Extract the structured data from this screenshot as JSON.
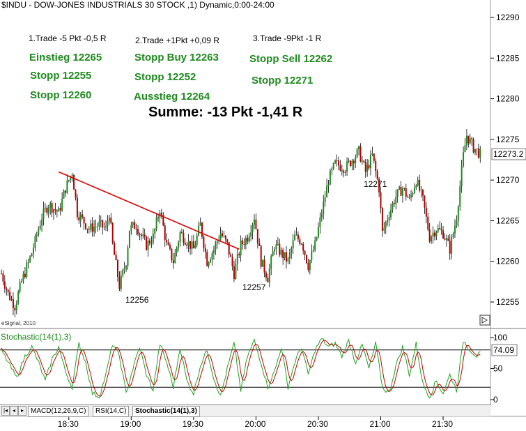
{
  "header": {
    "title": "$INDU - DOW-JONES INDUSTRIALS 30 STOCK ,1) Dynamic,0:00-24:00"
  },
  "trades": {
    "t1": {
      "title": "1.Trade -5 Pkt -0,5 R",
      "l1": "Einstieg 12265",
      "l2": "Stopp 12255",
      "l3": "Stopp 12260"
    },
    "t2": {
      "title": "2.Trade +1Pkt +0,09 R",
      "l1": "Stopp Buy 12263",
      "l2": "Stopp 12252",
      "l3": "Ausstieg 12264"
    },
    "t3": {
      "title": "3.Trade -9Pkt -1 R",
      "l1": "Stopp Sell 12262",
      "l2": "Stopp 12271"
    }
  },
  "summary": "Summe: -13 Pkt -1,41 R",
  "annotations": {
    "a1": "12256",
    "a2": "12257",
    "a3": "12271"
  },
  "watermark": "eSignal, 2010",
  "indicator": {
    "label": "Stochastic(14(1),3)",
    "value_label": "74.09",
    "value": 74.09
  },
  "tabs": [
    "MACD(12,26,9,C)",
    "RSI(14,C)",
    "Stochastic(14(1),3)"
  ],
  "colors": {
    "up": "#1f8a1f",
    "down": "#b00000",
    "trendline": "#e00000",
    "k_line": "#20a020",
    "d_line": "#c00000",
    "text_green": "#1f8a1f"
  },
  "chart_data": {
    "type": "candlestick",
    "title": "$INDU - DOW-JONES INDUSTRIALS 30 STOCK ,1) Dynamic,0:00-24:00",
    "ylim": [
      12253,
      12292
    ],
    "yticks": [
      "12290",
      "12285",
      "12280",
      "12275",
      "12270",
      "12265",
      "12260",
      "12255"
    ],
    "ytick_values": [
      12290,
      12285,
      12280,
      12275,
      12270,
      12265,
      12260,
      12255
    ],
    "last_price_label": "12273.2",
    "last_price": 12273.2,
    "xticks": [
      "18:30",
      "19:00",
      "19:30",
      "20:00",
      "20:30",
      "21:00",
      "21:30"
    ],
    "price_anchors": [
      [
        0,
        12258.5
      ],
      [
        4,
        12256
      ],
      [
        8,
        12254.5
      ],
      [
        12,
        12257.5
      ],
      [
        18,
        12261
      ],
      [
        24,
        12265.5
      ],
      [
        28,
        12267
      ],
      [
        34,
        12266
      ],
      [
        38,
        12269
      ],
      [
        42,
        12271
      ],
      [
        45,
        12266
      ],
      [
        52,
        12264
      ],
      [
        58,
        12264.5
      ],
      [
        62,
        12264
      ],
      [
        64,
        12266
      ],
      [
        66,
        12262
      ],
      [
        70,
        12257
      ],
      [
        74,
        12260
      ],
      [
        76,
        12264
      ],
      [
        80,
        12264.5
      ],
      [
        82,
        12263.5
      ],
      [
        86,
        12262
      ],
      [
        90,
        12263
      ],
      [
        94,
        12266.5
      ],
      [
        98,
        12262
      ],
      [
        102,
        12260
      ],
      [
        106,
        12263.5
      ],
      [
        110,
        12262.5
      ],
      [
        114,
        12261.5
      ],
      [
        118,
        12264.5
      ],
      [
        122,
        12260
      ],
      [
        126,
        12261.5
      ],
      [
        130,
        12263.5
      ],
      [
        134,
        12262
      ],
      [
        138,
        12258.5
      ],
      [
        142,
        12262
      ],
      [
        146,
        12263
      ],
      [
        150,
        12265.5
      ],
      [
        154,
        12260
      ],
      [
        158,
        12258
      ],
      [
        162,
        12262
      ],
      [
        166,
        12261
      ],
      [
        170,
        12260
      ],
      [
        174,
        12263
      ],
      [
        178,
        12262.5
      ],
      [
        182,
        12259.5
      ],
      [
        186,
        12262
      ],
      [
        190,
        12266
      ],
      [
        194,
        12270
      ],
      [
        198,
        12272
      ],
      [
        204,
        12271.5
      ],
      [
        208,
        12272.5
      ],
      [
        212,
        12273.5
      ],
      [
        216,
        12271
      ],
      [
        220,
        12273
      ],
      [
        224,
        12269
      ],
      [
        226,
        12263.5
      ],
      [
        230,
        12266
      ],
      [
        234,
        12268
      ],
      [
        238,
        12269
      ],
      [
        242,
        12267.5
      ],
      [
        246,
        12270
      ],
      [
        250,
        12267.5
      ],
      [
        254,
        12263
      ],
      [
        258,
        12264
      ],
      [
        262,
        12263.5
      ],
      [
        266,
        12261.5
      ],
      [
        270,
        12265.5
      ],
      [
        274,
        12273
      ],
      [
        276,
        12275.5
      ],
      [
        280,
        12274
      ],
      [
        284,
        12273.2
      ]
    ],
    "trendline": {
      "from": [
        34,
        12271
      ],
      "to": [
        141,
        12261.5
      ]
    },
    "stochastic": {
      "ylim": [
        0,
        100
      ],
      "yticks": [
        "100",
        "50",
        "0"
      ],
      "ytick_values": [
        100,
        50,
        0
      ],
      "levels": [
        80,
        20
      ],
      "k_anchors": [
        [
          0,
          80
        ],
        [
          5,
          55
        ],
        [
          9,
          35
        ],
        [
          14,
          70
        ],
        [
          18,
          85
        ],
        [
          22,
          60
        ],
        [
          26,
          30
        ],
        [
          30,
          65
        ],
        [
          34,
          85
        ],
        [
          38,
          45
        ],
        [
          42,
          20
        ],
        [
          46,
          90
        ],
        [
          50,
          60
        ],
        [
          54,
          10
        ],
        [
          58,
          5
        ],
        [
          62,
          40
        ],
        [
          66,
          90
        ],
        [
          70,
          70
        ],
        [
          74,
          10
        ],
        [
          78,
          50
        ],
        [
          82,
          85
        ],
        [
          86,
          40
        ],
        [
          90,
          15
        ],
        [
          94,
          90
        ],
        [
          98,
          60
        ],
        [
          102,
          20
        ],
        [
          106,
          85
        ],
        [
          110,
          30
        ],
        [
          114,
          10
        ],
        [
          118,
          55
        ],
        [
          122,
          80
        ],
        [
          126,
          35
        ],
        [
          130,
          5
        ],
        [
          134,
          50
        ],
        [
          138,
          90
        ],
        [
          142,
          15
        ],
        [
          146,
          70
        ],
        [
          150,
          95
        ],
        [
          154,
          60
        ],
        [
          158,
          20
        ],
        [
          162,
          45
        ],
        [
          166,
          85
        ],
        [
          170,
          20
        ],
        [
          174,
          60
        ],
        [
          178,
          85
        ],
        [
          182,
          40
        ],
        [
          186,
          80
        ],
        [
          190,
          98
        ],
        [
          194,
          85
        ],
        [
          198,
          90
        ],
        [
          202,
          70
        ],
        [
          206,
          95
        ],
        [
          210,
          60
        ],
        [
          214,
          88
        ],
        [
          218,
          50
        ],
        [
          222,
          90
        ],
        [
          226,
          20
        ],
        [
          230,
          10
        ],
        [
          234,
          55
        ],
        [
          238,
          85
        ],
        [
          242,
          40
        ],
        [
          246,
          90
        ],
        [
          250,
          25
        ],
        [
          254,
          5
        ],
        [
          258,
          30
        ],
        [
          262,
          10
        ],
        [
          266,
          40
        ],
        [
          270,
          15
        ],
        [
          274,
          95
        ],
        [
          278,
          80
        ],
        [
          282,
          70
        ],
        [
          284,
          74
        ]
      ]
    }
  }
}
